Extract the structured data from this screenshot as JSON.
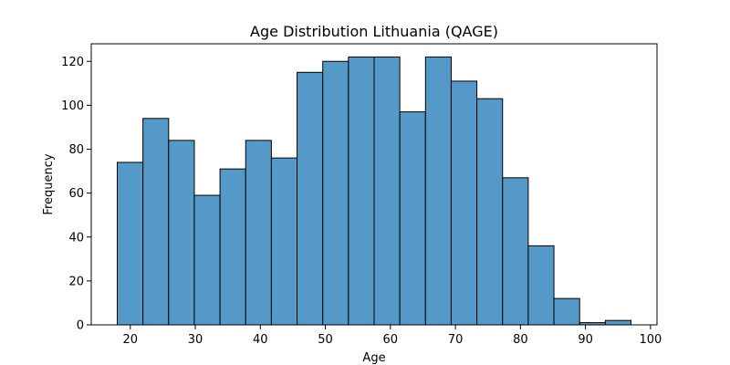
{
  "chart_data": {
    "type": "bar",
    "title": "Age Distribution Lithuania (QAGE)",
    "xlabel": "Age",
    "ylabel": "Frequency",
    "xlim": [
      14,
      101
    ],
    "ylim": [
      0,
      128
    ],
    "x_ticks": [
      20,
      30,
      40,
      50,
      60,
      70,
      80,
      90,
      100
    ],
    "y_ticks": [
      0,
      20,
      40,
      60,
      80,
      100,
      120
    ],
    "bin_edges": [
      18,
      21.95,
      25.9,
      29.85,
      33.8,
      37.75,
      41.7,
      45.65,
      49.6,
      53.55,
      57.5,
      61.45,
      65.4,
      69.35,
      73.3,
      77.25,
      81.2,
      85.15,
      89.1,
      93.05,
      97
    ],
    "values": [
      74,
      94,
      84,
      59,
      71,
      84,
      76,
      115,
      120,
      122,
      122,
      97,
      122,
      111,
      103,
      67,
      36,
      12,
      1,
      2
    ],
    "bar_color": "#5499c7",
    "edge_color": "#000000",
    "grid": false,
    "legend": "none"
  }
}
